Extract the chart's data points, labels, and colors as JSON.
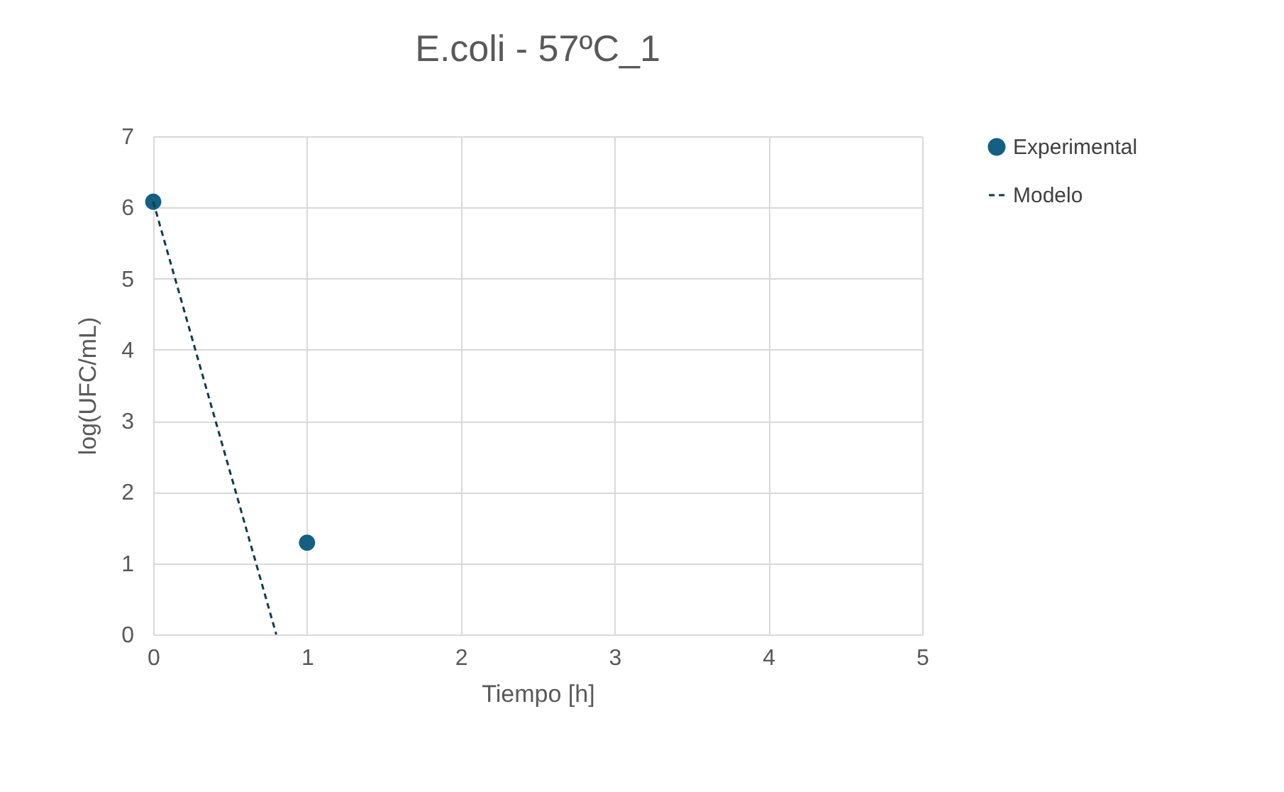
{
  "chart_data": {
    "type": "scatter",
    "title": "E.coli - 57ºC_1",
    "xlabel": "Tiempo [h]",
    "ylabel": "log(UFC/mL)",
    "series": [
      {
        "name": "Experimental",
        "color": "#156082",
        "x": [
          0,
          1
        ],
        "values": [
          6.08,
          1.29
        ],
        "marker": "circle"
      },
      {
        "name": "Modelo",
        "type": "line",
        "color": "#0e3a4e",
        "x": [
          0,
          0.8
        ],
        "values": [
          6.08,
          0
        ],
        "marker": "none",
        "line_style": "dashed"
      }
    ],
    "xlim": [
      0,
      5
    ],
    "xticks": [
      0,
      1,
      2,
      3,
      4,
      5
    ],
    "ylim": [
      0,
      7
    ],
    "yticks": [
      0,
      1,
      2,
      3,
      4,
      5,
      6,
      7
    ],
    "grid": true,
    "legend": "right"
  }
}
